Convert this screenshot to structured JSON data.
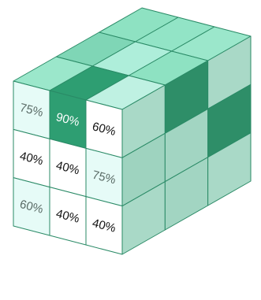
{
  "cube": {
    "colors": {
      "edge": "#2a8a66",
      "light": "#9fe3c9",
      "mid": "#7ed6b4",
      "dark": "#2e9e72",
      "pale": "#e6fbf7",
      "white": "#ffffff",
      "right_light": "#8fd0b8",
      "right_dark": "#2a8a66",
      "text_dark": "#111111",
      "text_light": "#ffffff",
      "text_gray": "#5a6b66"
    },
    "top": [
      [
        "light",
        "mid",
        "light"
      ],
      [
        "mid",
        "light",
        "mid"
      ],
      [
        "light",
        "mid",
        "light"
      ]
    ],
    "top_fill": [
      [
        "#8ee2c2",
        "#92e4c6",
        "#9be7cb"
      ],
      [
        "#7fd6b6",
        "#aeeeda",
        "#8ee2c2"
      ],
      [
        "#9be7cb",
        "#2e9e72",
        "#bff1e2"
      ]
    ],
    "right_fill": [
      [
        "#a9d9c7",
        "#2e8e68",
        "#a9d9c7"
      ],
      [
        "#9ed3bf",
        "#a2d5c2",
        "#2e8e68"
      ],
      [
        "#a9d9c7",
        "#a2d5c2",
        "#a9d9c7"
      ]
    ],
    "front": [
      [
        {
          "label": "75%",
          "fill": "#e6fbf7",
          "text": "#5a6b66"
        },
        {
          "label": "90%",
          "fill": "#2e9e72",
          "text": "#ffffff"
        },
        {
          "label": "60%",
          "fill": "#ffffff",
          "text": "#111111"
        }
      ],
      [
        {
          "label": "40%",
          "fill": "#ffffff",
          "text": "#111111"
        },
        {
          "label": "40%",
          "fill": "#ffffff",
          "text": "#111111"
        },
        {
          "label": "75%",
          "fill": "#e6fbf7",
          "text": "#5a6b66"
        }
      ],
      [
        {
          "label": "60%",
          "fill": "#e6fbf7",
          "text": "#5a6b66"
        },
        {
          "label": "40%",
          "fill": "#ffffff",
          "text": "#111111"
        },
        {
          "label": "40%",
          "fill": "#ffffff",
          "text": "#111111"
        }
      ]
    ]
  }
}
